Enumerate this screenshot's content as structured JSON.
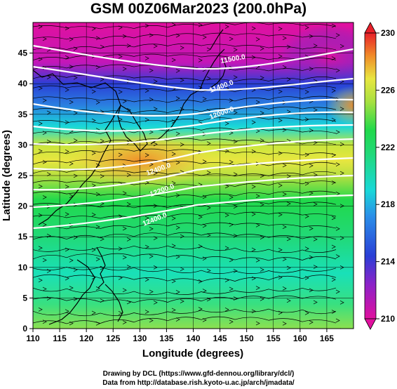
{
  "title": "GSM 00Z06Mar2023 (200.0hPa)",
  "x_axis": {
    "label": "Longitude (degrees)",
    "ticks": [
      "110",
      "115",
      "120",
      "125",
      "130",
      "135",
      "140",
      "145",
      "150",
      "155",
      "160",
      "165"
    ],
    "range": [
      110,
      170
    ]
  },
  "y_axis": {
    "label": "Latitude  (degrees)",
    "ticks": [
      "0",
      "5",
      "10",
      "15",
      "20",
      "25",
      "30",
      "35",
      "40",
      "45"
    ],
    "range": [
      0,
      50
    ]
  },
  "colorbar": {
    "labels": [
      "230",
      "226",
      "222",
      "218",
      "214",
      "210"
    ],
    "range": [
      210,
      230
    ]
  },
  "contour_labels": [
    "11500.0",
    "11400.0",
    "12000.0",
    "12400.0",
    "12200.0",
    "12400.0"
  ],
  "credits": {
    "line1": "Drawing by DCL (https://www.gfd-dennou.org/library/dcl/)",
    "line2": "Data from http://database.rish.kyoto-u.ac.jp/arch/jmadata/"
  },
  "colors": {
    "magenta": "#e0109e",
    "blue": "#2a3fd6",
    "cyan": "#19d8d8",
    "green": "#21d94b",
    "yellow": "#e8e640",
    "orange": "#f08c28",
    "red": "#e8202a",
    "contour": "#ffffff",
    "coast": "#000000"
  }
}
